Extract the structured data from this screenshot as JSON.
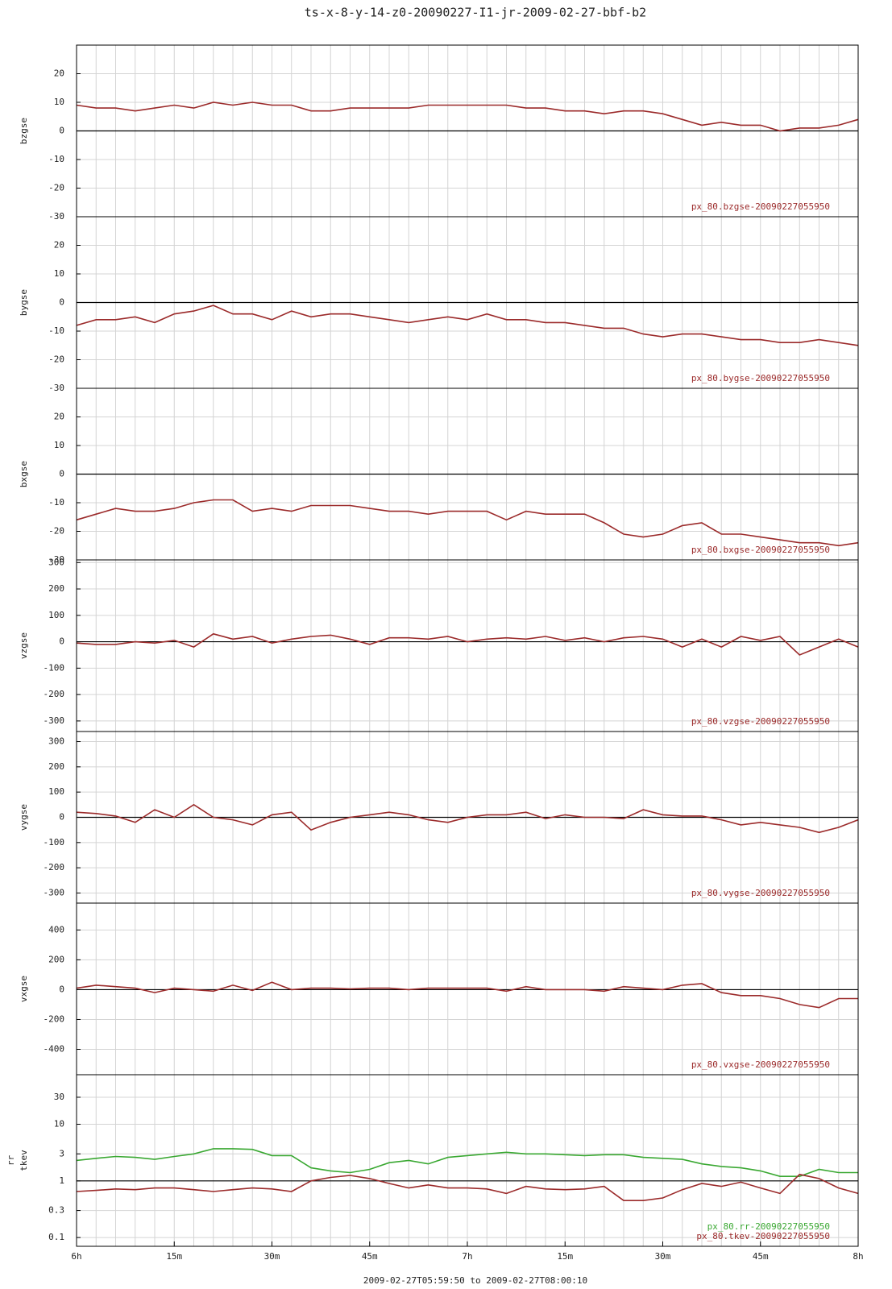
{
  "title": "ts-x-8-y-14-z0-20090227-I1-jr-2009-02-27-bbf-b2",
  "xaxis": {
    "xlim": [
      0,
      120
    ],
    "xticks": [
      {
        "value": 0,
        "label": "6h"
      },
      {
        "value": 15,
        "label": "15m"
      },
      {
        "value": 30,
        "label": "30m"
      },
      {
        "value": 45,
        "label": "45m"
      },
      {
        "value": 60,
        "label": "7h"
      },
      {
        "value": 75,
        "label": "15m"
      },
      {
        "value": 90,
        "label": "30m"
      },
      {
        "value": 105,
        "label": "45m"
      },
      {
        "value": 120,
        "label": "8h"
      }
    ],
    "range_label": "2009-02-27T05:59:50 to 2009-02-27T08:00:10"
  },
  "chart_data": [
    {
      "type": "line",
      "ylabel": "bzgse",
      "ylim": [
        -30,
        30
      ],
      "yticks": [
        20,
        10,
        0,
        -10,
        -20,
        -30
      ],
      "grid": true,
      "x": [
        0,
        3,
        6,
        9,
        12,
        15,
        18,
        21,
        24,
        27,
        30,
        33,
        36,
        39,
        42,
        45,
        48,
        51,
        54,
        57,
        60,
        63,
        66,
        69,
        72,
        75,
        78,
        81,
        84,
        87,
        90,
        93,
        96,
        99,
        102,
        105,
        108,
        111,
        114,
        117,
        120
      ],
      "series": [
        {
          "name": "px_80.bzgse-20090227055950",
          "color": "#9b2a2a",
          "values": [
            9,
            8,
            8,
            7,
            8,
            9,
            8,
            10,
            9,
            10,
            9,
            9,
            7,
            7,
            8,
            8,
            8,
            8,
            9,
            9,
            9,
            9,
            9,
            8,
            8,
            7,
            7,
            6,
            7,
            7,
            6,
            4,
            2,
            3,
            2,
            2,
            0,
            1,
            1,
            2,
            4
          ]
        }
      ]
    },
    {
      "type": "line",
      "ylabel": "bygse",
      "ylim": [
        -30,
        30
      ],
      "yticks": [
        20,
        10,
        0,
        -10,
        -20,
        -30
      ],
      "grid": true,
      "x": [
        0,
        3,
        6,
        9,
        12,
        15,
        18,
        21,
        24,
        27,
        30,
        33,
        36,
        39,
        42,
        45,
        48,
        51,
        54,
        57,
        60,
        63,
        66,
        69,
        72,
        75,
        78,
        81,
        84,
        87,
        90,
        93,
        96,
        99,
        102,
        105,
        108,
        111,
        114,
        117,
        120
      ],
      "series": [
        {
          "name": "px_80.bygse-20090227055950",
          "color": "#9b2a2a",
          "values": [
            -8,
            -6,
            -6,
            -5,
            -7,
            -4,
            -3,
            -1,
            -4,
            -4,
            -6,
            -3,
            -5,
            -4,
            -4,
            -5,
            -6,
            -7,
            -6,
            -5,
            -6,
            -4,
            -6,
            -6,
            -7,
            -7,
            -8,
            -9,
            -9,
            -11,
            -12,
            -11,
            -11,
            -12,
            -13,
            -13,
            -14,
            -14,
            -13,
            -14,
            -15
          ]
        }
      ]
    },
    {
      "type": "line",
      "ylabel": "bxgse",
      "ylim": [
        -30,
        30
      ],
      "yticks": [
        20,
        10,
        0,
        -10,
        -20,
        -30
      ],
      "grid": true,
      "x": [
        0,
        3,
        6,
        9,
        12,
        15,
        18,
        21,
        24,
        27,
        30,
        33,
        36,
        39,
        42,
        45,
        48,
        51,
        54,
        57,
        60,
        63,
        66,
        69,
        72,
        75,
        78,
        81,
        84,
        87,
        90,
        93,
        96,
        99,
        102,
        105,
        108,
        111,
        114,
        117,
        120
      ],
      "series": [
        {
          "name": "px_80.bxgse-20090227055950",
          "color": "#9b2a2a",
          "values": [
            -16,
            -14,
            -12,
            -13,
            -13,
            -12,
            -10,
            -9,
            -9,
            -13,
            -12,
            -13,
            -11,
            -11,
            -11,
            -12,
            -13,
            -13,
            -14,
            -13,
            -13,
            -13,
            -16,
            -13,
            -14,
            -14,
            -14,
            -17,
            -21,
            -22,
            -21,
            -18,
            -17,
            -21,
            -21,
            -22,
            -23,
            -24,
            -24,
            -25,
            -24
          ]
        }
      ]
    },
    {
      "type": "line",
      "ylabel": "vzgse",
      "ylim": [
        -340,
        310
      ],
      "yticks": [
        300,
        200,
        100,
        0,
        -100,
        -200,
        -300
      ],
      "grid": true,
      "x": [
        0,
        3,
        6,
        9,
        12,
        15,
        18,
        21,
        24,
        27,
        30,
        33,
        36,
        39,
        42,
        45,
        48,
        51,
        54,
        57,
        60,
        63,
        66,
        69,
        72,
        75,
        78,
        81,
        84,
        87,
        90,
        93,
        96,
        99,
        102,
        105,
        108,
        111,
        114,
        117,
        120
      ],
      "series": [
        {
          "name": "px_80.vzgse-20090227055950",
          "color": "#9b2a2a",
          "values": [
            -5,
            -10,
            -10,
            0,
            -5,
            5,
            -20,
            30,
            10,
            20,
            -5,
            10,
            20,
            25,
            10,
            -10,
            15,
            15,
            10,
            20,
            0,
            10,
            15,
            10,
            20,
            5,
            15,
            0,
            15,
            20,
            10,
            -20,
            10,
            -20,
            20,
            5,
            20,
            -50,
            -20,
            10,
            -20
          ]
        }
      ]
    },
    {
      "type": "line",
      "ylabel": "vygse",
      "ylim": [
        -340,
        340
      ],
      "yticks": [
        300,
        200,
        100,
        0,
        -100,
        -200,
        -300
      ],
      "grid": true,
      "x": [
        0,
        3,
        6,
        9,
        12,
        15,
        18,
        21,
        24,
        27,
        30,
        33,
        36,
        39,
        42,
        45,
        48,
        51,
        54,
        57,
        60,
        63,
        66,
        69,
        72,
        75,
        78,
        81,
        84,
        87,
        90,
        93,
        96,
        99,
        102,
        105,
        108,
        111,
        114,
        117,
        120
      ],
      "series": [
        {
          "name": "px_80.vygse-20090227055950",
          "color": "#9b2a2a",
          "values": [
            20,
            15,
            5,
            -20,
            30,
            0,
            50,
            0,
            -10,
            -30,
            10,
            20,
            -50,
            -20,
            0,
            10,
            20,
            10,
            -10,
            -20,
            0,
            10,
            10,
            20,
            -5,
            10,
            0,
            0,
            -5,
            30,
            10,
            5,
            5,
            -10,
            -30,
            -20,
            -30,
            -40,
            -60,
            -40,
            -10
          ]
        }
      ]
    },
    {
      "type": "line",
      "ylabel": "vxgse",
      "ylim": [
        -570,
        580
      ],
      "yticks": [
        400,
        200,
        0,
        -200,
        -400
      ],
      "grid": true,
      "x": [
        0,
        3,
        6,
        9,
        12,
        15,
        18,
        21,
        24,
        27,
        30,
        33,
        36,
        39,
        42,
        45,
        48,
        51,
        54,
        57,
        60,
        63,
        66,
        69,
        72,
        75,
        78,
        81,
        84,
        87,
        90,
        93,
        96,
        99,
        102,
        105,
        108,
        111,
        114,
        117,
        120
      ],
      "series": [
        {
          "name": "px_80.vxgse-20090227055950",
          "color": "#9b2a2a",
          "values": [
            10,
            30,
            20,
            10,
            -20,
            10,
            0,
            -10,
            30,
            -5,
            50,
            0,
            10,
            10,
            5,
            10,
            10,
            0,
            10,
            10,
            10,
            10,
            -10,
            20,
            0,
            0,
            0,
            -10,
            20,
            10,
            0,
            30,
            40,
            -20,
            -40,
            -40,
            -60,
            -100,
            -120,
            -60,
            -60
          ]
        }
      ]
    },
    {
      "type": "line",
      "ylabel": [
        "rr",
        "tkev"
      ],
      "log": true,
      "ylim": [
        0.07,
        75
      ],
      "yticks": [
        30,
        10,
        3,
        1,
        0.3,
        0.1
      ],
      "grid": true,
      "x": [
        0,
        3,
        6,
        9,
        12,
        15,
        18,
        21,
        24,
        27,
        30,
        33,
        36,
        39,
        42,
        45,
        48,
        51,
        54,
        57,
        60,
        63,
        66,
        69,
        72,
        75,
        78,
        81,
        84,
        87,
        90,
        93,
        96,
        99,
        102,
        105,
        108,
        111,
        114,
        117,
        120
      ],
      "series": [
        {
          "name": "px_80.rr-20090227055950",
          "color": "#3aa832",
          "values": [
            2.3,
            2.5,
            2.7,
            2.6,
            2.4,
            2.7,
            3.0,
            3.7,
            3.7,
            3.6,
            2.8,
            2.8,
            1.7,
            1.5,
            1.4,
            1.6,
            2.1,
            2.3,
            2.0,
            2.6,
            2.8,
            3.0,
            3.2,
            3.0,
            3.0,
            2.9,
            2.8,
            2.9,
            2.9,
            2.6,
            2.5,
            2.4,
            2.0,
            1.8,
            1.7,
            1.5,
            1.2,
            1.2,
            1.6,
            1.4,
            1.4
          ]
        },
        {
          "name": "px_80.tkev-20090227055950",
          "color": "#9b2a2a",
          "values": [
            0.65,
            0.68,
            0.72,
            0.7,
            0.75,
            0.75,
            0.7,
            0.65,
            0.7,
            0.75,
            0.72,
            0.65,
            1.0,
            1.15,
            1.25,
            1.1,
            0.9,
            0.75,
            0.85,
            0.75,
            0.75,
            0.72,
            0.6,
            0.8,
            0.72,
            0.7,
            0.72,
            0.8,
            0.45,
            0.45,
            0.5,
            0.7,
            0.9,
            0.8,
            0.95,
            0.75,
            0.6,
            1.3,
            1.1,
            0.75,
            0.6
          ]
        }
      ]
    }
  ]
}
